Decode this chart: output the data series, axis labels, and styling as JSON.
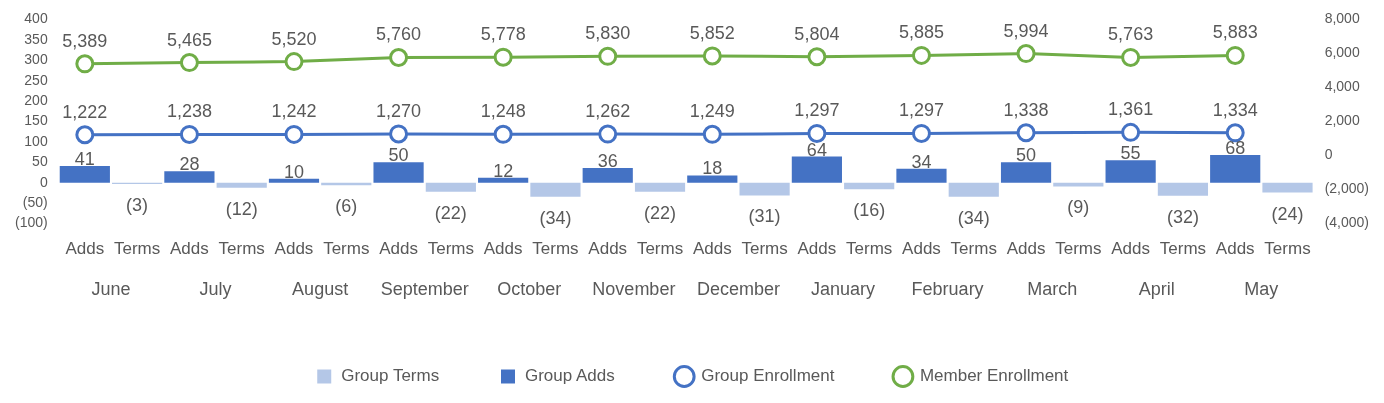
{
  "chart_data": {
    "type": "bar",
    "categories": [
      "Adds",
      "Terms",
      "Adds",
      "Terms",
      "Adds",
      "Terms",
      "Adds",
      "Terms",
      "Adds",
      "Terms",
      "Adds",
      "Terms",
      "Adds",
      "Terms",
      "Adds",
      "Terms",
      "Adds",
      "Terms",
      "Adds",
      "Terms",
      "Adds",
      "Terms",
      "Adds",
      "Terms"
    ],
    "annotations": [
      "June",
      "July",
      "August",
      "September",
      "October",
      "November",
      "December",
      "January",
      "February",
      "March",
      "April",
      "May"
    ],
    "series": [
      {
        "name": "Group Terms",
        "color": "#b4c7e7",
        "values": [
          null,
          -3,
          null,
          -12,
          null,
          -6,
          null,
          -22,
          null,
          -34,
          null,
          -22,
          null,
          -31,
          null,
          -16,
          null,
          -34,
          null,
          -9,
          null,
          -32,
          null,
          -24
        ],
        "value_labels": [
          null,
          "(3)",
          null,
          "(12)",
          null,
          "(6)",
          null,
          "(22)",
          null,
          "(34)",
          null,
          "(22)",
          null,
          "(31)",
          null,
          "(16)",
          null,
          "(34)",
          null,
          "(9)",
          null,
          "(32)",
          null,
          "(24)"
        ]
      },
      {
        "name": "Group Adds",
        "color": "#4472c4",
        "values": [
          41,
          null,
          28,
          null,
          10,
          null,
          50,
          null,
          12,
          null,
          36,
          null,
          18,
          null,
          64,
          null,
          34,
          null,
          50,
          null,
          55,
          null,
          68,
          null
        ],
        "value_labels": [
          "41",
          null,
          "28",
          null,
          "10",
          null,
          "50",
          null,
          "12",
          null,
          "36",
          null,
          "18",
          null,
          "64",
          null,
          "34",
          null,
          "50",
          null,
          "55",
          null,
          "68",
          null
        ]
      },
      {
        "name": "Group Enrollment",
        "type": "line",
        "axis": "y2",
        "color": "#4472c4",
        "values": [
          1222,
          null,
          1238,
          null,
          1242,
          null,
          1270,
          null,
          1248,
          null,
          1262,
          null,
          1249,
          null,
          1297,
          null,
          1297,
          null,
          1338,
          null,
          1361,
          null,
          1334,
          null
        ],
        "value_labels": [
          "1,222",
          null,
          "1,238",
          null,
          "1,242",
          null,
          "1,270",
          null,
          "1,248",
          null,
          "1,262",
          null,
          "1,249",
          null,
          "1,297",
          null,
          "1,297",
          null,
          "1,338",
          null,
          "1,361",
          null,
          "1,334",
          null
        ]
      },
      {
        "name": "Member Enrollment",
        "type": "line",
        "axis": "y2",
        "color": "#70ad47",
        "values": [
          5389,
          null,
          5465,
          null,
          5520,
          null,
          5760,
          null,
          5778,
          null,
          5830,
          null,
          5852,
          null,
          5804,
          null,
          5885,
          null,
          5994,
          null,
          5763,
          null,
          5883,
          null
        ],
        "value_labels": [
          "5,389",
          null,
          "5,465",
          null,
          "5,520",
          null,
          "5,760",
          null,
          "5,778",
          null,
          "5,830",
          null,
          "5,852",
          null,
          "5,804",
          null,
          "5,885",
          null,
          "5,994",
          null,
          "5,763",
          null,
          "5,883",
          null
        ]
      }
    ],
    "ylim": [
      -100,
      400
    ],
    "yticks": [
      {
        "value": -100,
        "label": "(100)"
      },
      {
        "value": -50,
        "label": "(50)"
      },
      0,
      50,
      100,
      150,
      200,
      250,
      300,
      350,
      400
    ],
    "y2lim": [
      -4000,
      8000
    ],
    "y2ticks": [
      {
        "value": -4000,
        "label": "(4,000)"
      },
      {
        "value": -2000,
        "label": "(2,000)"
      },
      0,
      {
        "value": 2000,
        "label": "2,000"
      },
      {
        "value": 4000,
        "label": "4,000"
      },
      {
        "value": 6000,
        "label": "6,000"
      },
      {
        "value": 8000,
        "label": "8,000"
      }
    ],
    "marker": "circle",
    "line_style": "solid",
    "legend": "bottom",
    "grid": false
  }
}
